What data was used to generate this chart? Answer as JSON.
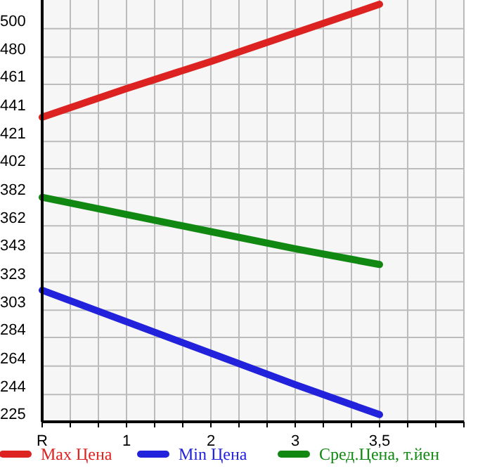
{
  "chart_data": {
    "type": "line",
    "categories": [
      "R",
      "1",
      "2",
      "3",
      "3,5",
      null
    ],
    "series": [
      {
        "name": "Max Цена",
        "color": "#dd2222",
        "values": [
          438,
          458,
          477,
          497,
          517,
          null
        ]
      },
      {
        "name": "Min Цена",
        "color": "#2222dd",
        "values": [
          317,
          295,
          273,
          251,
          230,
          null
        ]
      },
      {
        "name": "Сред.Цена, т.йен",
        "color": "#118811",
        "values": [
          382,
          370,
          358,
          346,
          335,
          null
        ]
      }
    ],
    "ylim": [
      225,
      520
    ],
    "yticks": [
      225,
      244,
      264,
      284,
      303,
      323,
      343,
      362,
      382,
      402,
      421,
      441,
      461,
      480,
      500
    ],
    "grid": true,
    "legend": "bottom",
    "marker": "none",
    "line_style": "solid"
  }
}
